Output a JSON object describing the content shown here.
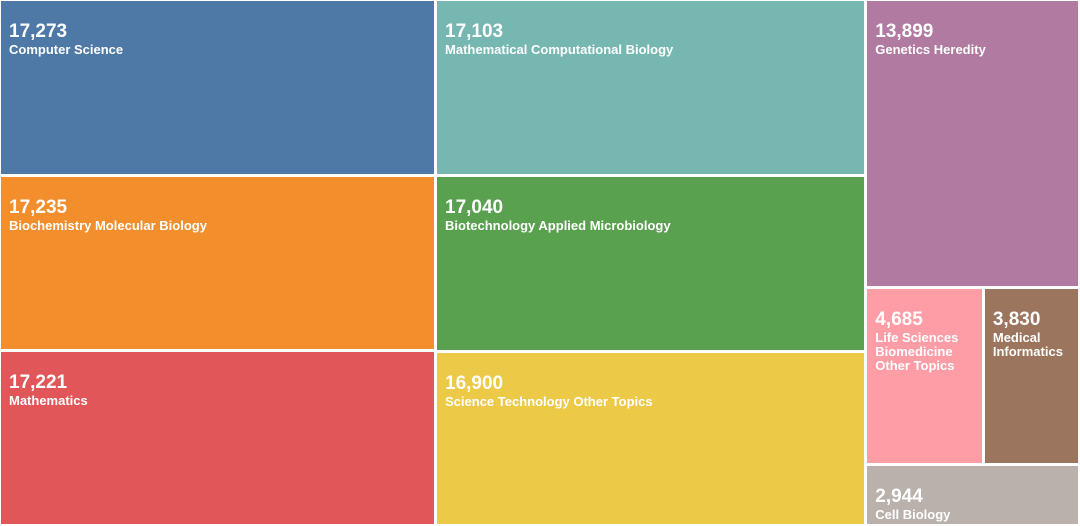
{
  "chart_data": {
    "type": "treemap",
    "title": "",
    "items": [
      {
        "name": "Computer Science",
        "value": 17273,
        "value_label": "17,273",
        "color": "#4e79a7"
      },
      {
        "name": "Biochemistry Molecular Biology",
        "value": 17235,
        "value_label": "17,235",
        "color": "#f28e2b"
      },
      {
        "name": "Mathematics",
        "value": 17221,
        "value_label": "17,221",
        "color": "#e15759"
      },
      {
        "name": "Mathematical Computational Biology",
        "value": 17103,
        "value_label": "17,103",
        "color": "#76b7b2"
      },
      {
        "name": "Biotechnology Applied Microbiology",
        "value": 17040,
        "value_label": "17,040",
        "color": "#59a14f"
      },
      {
        "name": "Science Technology Other Topics",
        "value": 16900,
        "value_label": "16,900",
        "color": "#edc948"
      },
      {
        "name": "Genetics Heredity",
        "value": 13899,
        "value_label": "13,899",
        "color": "#b07aa1"
      },
      {
        "name": "Life Sciences Biomedicine Other Topics",
        "value": 4685,
        "value_label": "4,685",
        "color": "#ff9da7"
      },
      {
        "name": "Medical Informatics",
        "value": 3830,
        "value_label": "3,830",
        "color": "#9c755f"
      },
      {
        "name": "Cell Biology",
        "value": 2944,
        "value_label": "2,944",
        "color": "#bab0ac"
      }
    ]
  }
}
